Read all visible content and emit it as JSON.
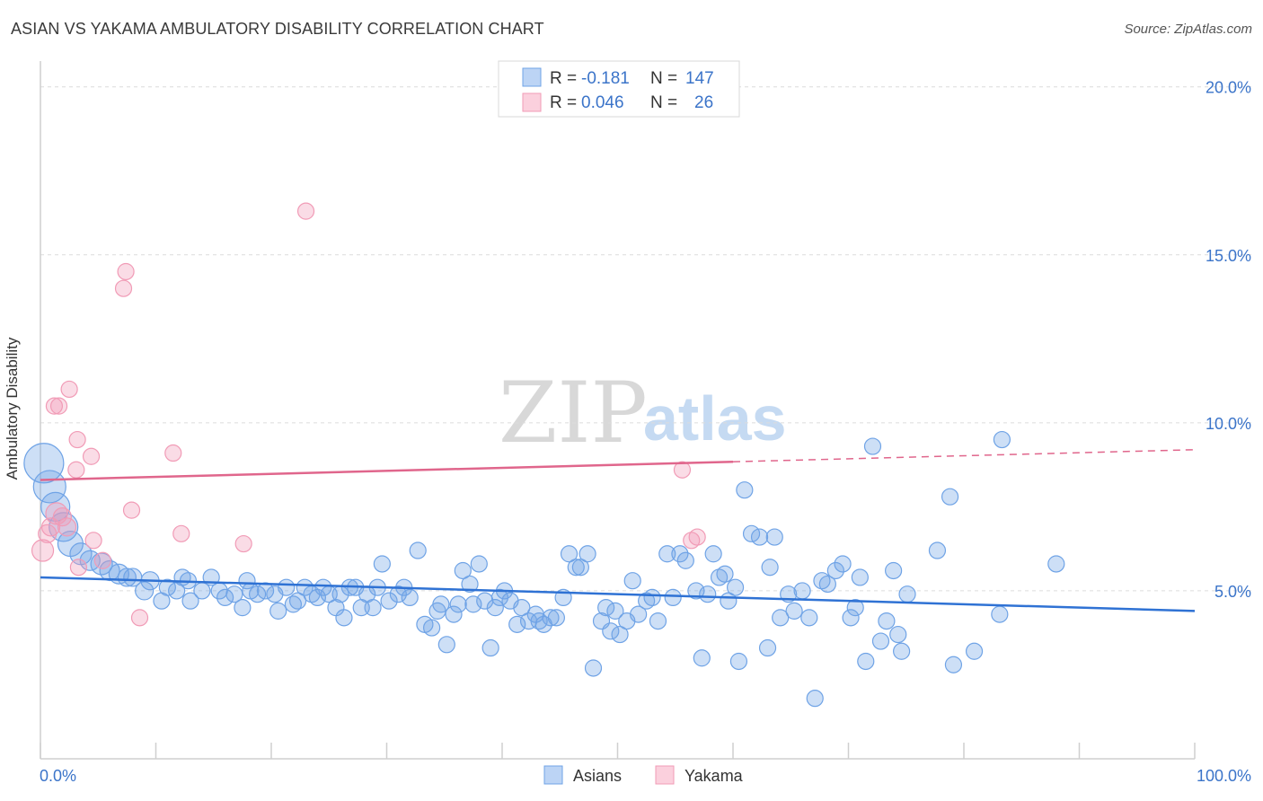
{
  "title": "ASIAN VS YAKAMA AMBULATORY DISABILITY CORRELATION CHART",
  "source": "Source: ZipAtlas.com",
  "watermark": {
    "part1": "ZIP",
    "part2": "atlas"
  },
  "colors": {
    "asians": "#6fa3e6",
    "asians_line": "#2f72d4",
    "yakama": "#f19bb6",
    "yakama_line": "#e0668c",
    "axis_text": "#3b74c9"
  },
  "legend_top": [
    {
      "r_label": "R = ",
      "r_value": "-0.181",
      "n_label": "N = ",
      "n_value": "147"
    },
    {
      "r_label": "R = ",
      "r_value": "0.046",
      "n_label": "N = ",
      "n_value": "26"
    }
  ],
  "legend_bottom": [
    "Asians",
    "Yakama"
  ],
  "chart_data": {
    "type": "scatter",
    "xlabel": "",
    "ylabel": "Ambulatory Disability",
    "x_tick_labels": [
      "0.0%",
      "100.0%"
    ],
    "y_tick_labels": [
      "5.0%",
      "10.0%",
      "15.0%",
      "20.0%"
    ],
    "xlim": [
      0,
      100
    ],
    "ylim": [
      0,
      20.5
    ],
    "grid": true,
    "legend_position": "top-center",
    "series": [
      {
        "name": "Asians",
        "trend": {
          "x": [
            0,
            100
          ],
          "y": [
            5.4,
            4.4
          ]
        },
        "points": [
          [
            0.3,
            8.8
          ],
          [
            0.8,
            8.1
          ],
          [
            1.3,
            7.5
          ],
          [
            2.0,
            6.9
          ],
          [
            2.6,
            6.4
          ],
          [
            3.5,
            6.1
          ],
          [
            4.3,
            5.9
          ],
          [
            5.3,
            5.8
          ],
          [
            6.0,
            5.6
          ],
          [
            6.8,
            5.5
          ],
          [
            7.5,
            5.4
          ],
          [
            8.0,
            5.4
          ],
          [
            9.0,
            5.0
          ],
          [
            9.5,
            5.3
          ],
          [
            10.5,
            4.7
          ],
          [
            11.0,
            5.1
          ],
          [
            11.8,
            5.0
          ],
          [
            12.3,
            5.4
          ],
          [
            12.8,
            5.3
          ],
          [
            13.0,
            4.7
          ],
          [
            14.0,
            5.0
          ],
          [
            14.8,
            5.4
          ],
          [
            15.5,
            5.0
          ],
          [
            16.0,
            4.8
          ],
          [
            16.8,
            4.9
          ],
          [
            17.5,
            4.5
          ],
          [
            17.9,
            5.3
          ],
          [
            18.2,
            5.0
          ],
          [
            18.8,
            4.9
          ],
          [
            19.5,
            5.0
          ],
          [
            20.3,
            4.9
          ],
          [
            20.6,
            4.4
          ],
          [
            21.3,
            5.1
          ],
          [
            21.9,
            4.6
          ],
          [
            22.3,
            4.7
          ],
          [
            22.9,
            5.1
          ],
          [
            23.5,
            4.9
          ],
          [
            24.0,
            4.8
          ],
          [
            24.5,
            5.1
          ],
          [
            25.0,
            4.9
          ],
          [
            25.6,
            4.5
          ],
          [
            26.0,
            4.9
          ],
          [
            26.3,
            4.2
          ],
          [
            26.8,
            5.1
          ],
          [
            27.3,
            5.1
          ],
          [
            27.8,
            4.5
          ],
          [
            28.3,
            4.9
          ],
          [
            28.8,
            4.5
          ],
          [
            29.2,
            5.1
          ],
          [
            29.6,
            5.8
          ],
          [
            30.2,
            4.7
          ],
          [
            31.0,
            4.9
          ],
          [
            31.5,
            5.1
          ],
          [
            32.0,
            4.8
          ],
          [
            32.7,
            6.2
          ],
          [
            33.3,
            4.0
          ],
          [
            33.9,
            3.9
          ],
          [
            34.4,
            4.4
          ],
          [
            34.7,
            4.6
          ],
          [
            35.2,
            3.4
          ],
          [
            35.8,
            4.3
          ],
          [
            36.2,
            4.6
          ],
          [
            36.6,
            5.6
          ],
          [
            37.2,
            5.2
          ],
          [
            37.5,
            4.6
          ],
          [
            38.0,
            5.8
          ],
          [
            38.5,
            4.7
          ],
          [
            39.0,
            3.3
          ],
          [
            39.4,
            4.5
          ],
          [
            39.8,
            4.8
          ],
          [
            40.2,
            5.0
          ],
          [
            40.7,
            4.7
          ],
          [
            41.3,
            4.0
          ],
          [
            41.7,
            4.5
          ],
          [
            42.3,
            4.1
          ],
          [
            42.9,
            4.3
          ],
          [
            43.2,
            4.1
          ],
          [
            43.6,
            4.0
          ],
          [
            44.2,
            4.2
          ],
          [
            44.7,
            4.2
          ],
          [
            45.3,
            4.8
          ],
          [
            45.8,
            6.1
          ],
          [
            46.4,
            5.7
          ],
          [
            46.8,
            5.7
          ],
          [
            47.4,
            6.1
          ],
          [
            47.9,
            2.7
          ],
          [
            48.6,
            4.1
          ],
          [
            49.0,
            4.5
          ],
          [
            49.4,
            3.8
          ],
          [
            49.8,
            4.4
          ],
          [
            50.2,
            3.7
          ],
          [
            50.8,
            4.1
          ],
          [
            51.3,
            5.3
          ],
          [
            51.8,
            4.3
          ],
          [
            52.5,
            4.7
          ],
          [
            53.0,
            4.8
          ],
          [
            53.5,
            4.1
          ],
          [
            54.3,
            6.1
          ],
          [
            54.8,
            4.8
          ],
          [
            55.4,
            6.1
          ],
          [
            55.9,
            5.9
          ],
          [
            56.8,
            5.0
          ],
          [
            57.3,
            3.0
          ],
          [
            57.8,
            4.9
          ],
          [
            58.3,
            6.1
          ],
          [
            58.8,
            5.4
          ],
          [
            59.3,
            5.5
          ],
          [
            59.6,
            4.7
          ],
          [
            60.2,
            5.1
          ],
          [
            60.5,
            2.9
          ],
          [
            61.0,
            8.0
          ],
          [
            61.6,
            6.7
          ],
          [
            62.3,
            6.6
          ],
          [
            63.0,
            3.3
          ],
          [
            63.2,
            5.7
          ],
          [
            63.6,
            6.6
          ],
          [
            64.1,
            4.2
          ],
          [
            64.8,
            4.9
          ],
          [
            65.3,
            4.4
          ],
          [
            66.0,
            5.0
          ],
          [
            66.6,
            4.2
          ],
          [
            67.1,
            1.8
          ],
          [
            67.7,
            5.3
          ],
          [
            68.2,
            5.2
          ],
          [
            68.9,
            5.6
          ],
          [
            69.5,
            5.8
          ],
          [
            70.2,
            4.2
          ],
          [
            70.6,
            4.5
          ],
          [
            71.0,
            5.4
          ],
          [
            71.5,
            2.9
          ],
          [
            72.1,
            9.3
          ],
          [
            72.8,
            3.5
          ],
          [
            73.3,
            4.1
          ],
          [
            73.9,
            5.6
          ],
          [
            74.3,
            3.7
          ],
          [
            74.6,
            3.2
          ],
          [
            75.1,
            4.9
          ],
          [
            77.7,
            6.2
          ],
          [
            78.8,
            7.8
          ],
          [
            79.1,
            2.8
          ],
          [
            80.9,
            3.2
          ],
          [
            83.3,
            9.5
          ],
          [
            83.1,
            4.3
          ],
          [
            88.0,
            5.8
          ]
        ],
        "sizes": [
          22,
          18,
          16,
          16,
          14,
          12,
          11,
          12,
          11,
          11,
          10,
          10,
          10,
          10,
          9,
          9,
          9,
          9,
          9,
          9,
          9,
          9,
          9,
          9,
          9,
          9,
          9,
          9,
          9,
          9,
          9,
          9,
          9,
          9,
          9,
          9,
          9,
          9,
          9,
          9,
          9,
          9,
          9,
          9,
          9,
          9,
          9,
          9,
          9,
          9,
          9,
          9,
          9,
          9,
          9,
          9,
          9,
          9,
          9,
          9,
          9,
          9,
          9,
          9,
          9,
          9,
          9,
          9,
          9,
          9,
          9,
          9,
          9,
          9,
          9,
          9,
          9,
          9,
          9,
          9,
          9,
          9,
          9,
          9,
          9,
          9,
          9,
          9,
          9,
          9,
          9,
          9,
          9,
          9,
          9,
          9,
          9,
          9,
          9,
          9,
          9,
          9,
          9,
          9,
          9,
          9,
          9,
          9,
          9,
          9,
          9,
          9,
          9,
          9,
          9,
          9,
          9,
          9,
          9,
          9,
          9,
          9,
          9,
          9,
          9,
          9,
          9,
          9,
          9,
          9,
          9,
          9,
          9,
          9,
          9,
          9,
          9,
          9,
          9,
          9,
          9,
          9,
          9,
          9,
          9,
          9,
          9
        ]
      },
      {
        "name": "Yakama",
        "trend": {
          "x": [
            0,
            100
          ],
          "y": [
            8.3,
            9.2
          ]
        },
        "trend_solid_until": 60,
        "points": [
          [
            0.2,
            6.2
          ],
          [
            0.6,
            6.7
          ],
          [
            0.9,
            6.9
          ],
          [
            1.4,
            7.3
          ],
          [
            1.9,
            7.2
          ],
          [
            2.3,
            6.9
          ],
          [
            1.2,
            10.5
          ],
          [
            1.6,
            10.5
          ],
          [
            2.5,
            11.0
          ],
          [
            3.2,
            9.5
          ],
          [
            3.1,
            8.6
          ],
          [
            4.4,
            9.0
          ],
          [
            4.6,
            6.5
          ],
          [
            3.3,
            5.7
          ],
          [
            5.4,
            5.9
          ],
          [
            7.4,
            14.5
          ],
          [
            7.2,
            14.0
          ],
          [
            7.9,
            7.4
          ],
          [
            8.6,
            4.2
          ],
          [
            11.5,
            9.1
          ],
          [
            12.2,
            6.7
          ],
          [
            17.6,
            6.4
          ],
          [
            23.0,
            16.3
          ],
          [
            55.6,
            8.6
          ],
          [
            56.4,
            6.5
          ],
          [
            56.9,
            6.6
          ]
        ],
        "sizes": [
          12,
          10,
          10,
          12,
          10,
          10,
          9,
          9,
          9,
          9,
          9,
          9,
          9,
          9,
          9,
          9,
          9,
          9,
          9,
          9,
          9,
          9,
          9,
          9,
          9,
          9
        ]
      }
    ]
  }
}
